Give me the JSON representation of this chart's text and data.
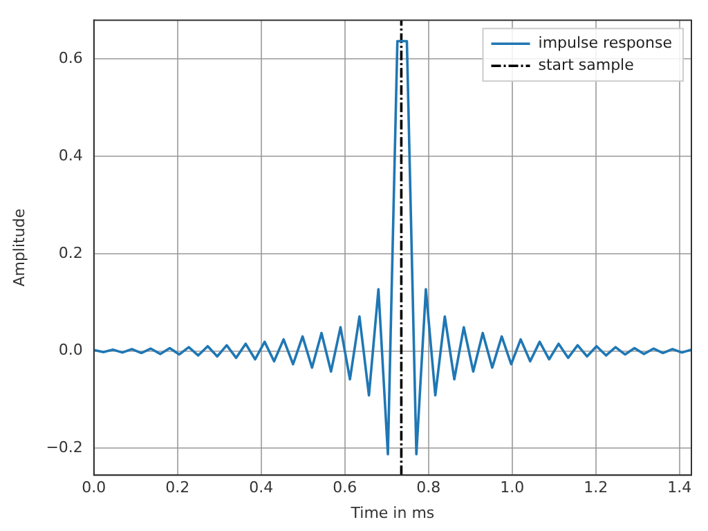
{
  "chart_data": {
    "type": "line",
    "xlabel": "Time in ms",
    "ylabel": "Amplitude",
    "x": [
      0,
      0.0227,
      0.0454,
      0.068,
      0.0907,
      0.1134,
      0.1361,
      0.1587,
      0.1814,
      0.2041,
      0.2268,
      0.2494,
      0.2721,
      0.2948,
      0.3175,
      0.3401,
      0.3628,
      0.3855,
      0.4082,
      0.4308,
      0.4535,
      0.4762,
      0.4989,
      0.5215,
      0.5442,
      0.5669,
      0.5896,
      0.6122,
      0.6349,
      0.6576,
      0.6803,
      0.7029,
      0.7256,
      0.7483,
      0.771,
      0.7937,
      0.8163,
      0.839,
      0.8617,
      0.8844,
      0.907,
      0.9297,
      0.9524,
      0.9751,
      0.9977,
      1.0204,
      1.0431,
      1.0658,
      1.0884,
      1.1111,
      1.1338,
      1.1565,
      1.1791,
      1.2018,
      1.2245,
      1.2472,
      1.2698,
      1.2925,
      1.3152,
      1.3379,
      1.3605,
      1.3832,
      1.4059,
      1.4286
    ],
    "series": [
      {
        "name": "impulse response",
        "color": "#1f77b4",
        "values": [
          0.002,
          -0.002,
          0.003,
          -0.003,
          0.004,
          -0.004,
          0.005,
          -0.006,
          0.006,
          -0.007,
          0.008,
          -0.009,
          0.01,
          -0.011,
          0.012,
          -0.014,
          0.015,
          -0.017,
          0.019,
          -0.021,
          0.024,
          -0.027,
          0.03,
          -0.034,
          0.037,
          -0.042,
          0.049,
          -0.058,
          0.071,
          -0.091,
          0.127,
          -0.212,
          0.637,
          0.637,
          -0.212,
          0.127,
          -0.091,
          0.071,
          -0.058,
          0.049,
          -0.042,
          0.037,
          -0.034,
          0.03,
          -0.027,
          0.024,
          -0.021,
          0.019,
          -0.017,
          0.015,
          -0.014,
          0.012,
          -0.011,
          0.01,
          -0.009,
          0.008,
          -0.007,
          0.006,
          -0.006,
          0.005,
          -0.004,
          0.004,
          -0.003,
          0.003
        ]
      }
    ],
    "ref_lines": [
      {
        "axis": "x",
        "value": 0.735,
        "label": "start sample",
        "color": "#000000",
        "line_style": "dashdot"
      }
    ],
    "xlim": [
      0,
      1.4286
    ],
    "xticks": [
      {
        "value": 0,
        "label": "0.0"
      },
      {
        "value": 0.2,
        "label": "0.2"
      },
      {
        "value": 0.4,
        "label": "0.4"
      },
      {
        "value": 0.6,
        "label": "0.6"
      },
      {
        "value": 0.8,
        "label": "0.8"
      },
      {
        "value": 1,
        "label": "1.0"
      },
      {
        "value": 1.2,
        "label": "1.2"
      },
      {
        "value": 1.4,
        "label": "1.4"
      }
    ],
    "ylim": [
      -0.255,
      0.68
    ],
    "yticks": [
      {
        "value": -0.2,
        "label": "−0.2"
      },
      {
        "value": 0,
        "label": "0.0"
      },
      {
        "value": 0.2,
        "label": "0.2"
      },
      {
        "value": 0.4,
        "label": "0.4"
      },
      {
        "value": 0.6,
        "label": "0.6"
      }
    ],
    "grid": true,
    "legend": "top right",
    "marker": "none",
    "line_style": "solid"
  }
}
